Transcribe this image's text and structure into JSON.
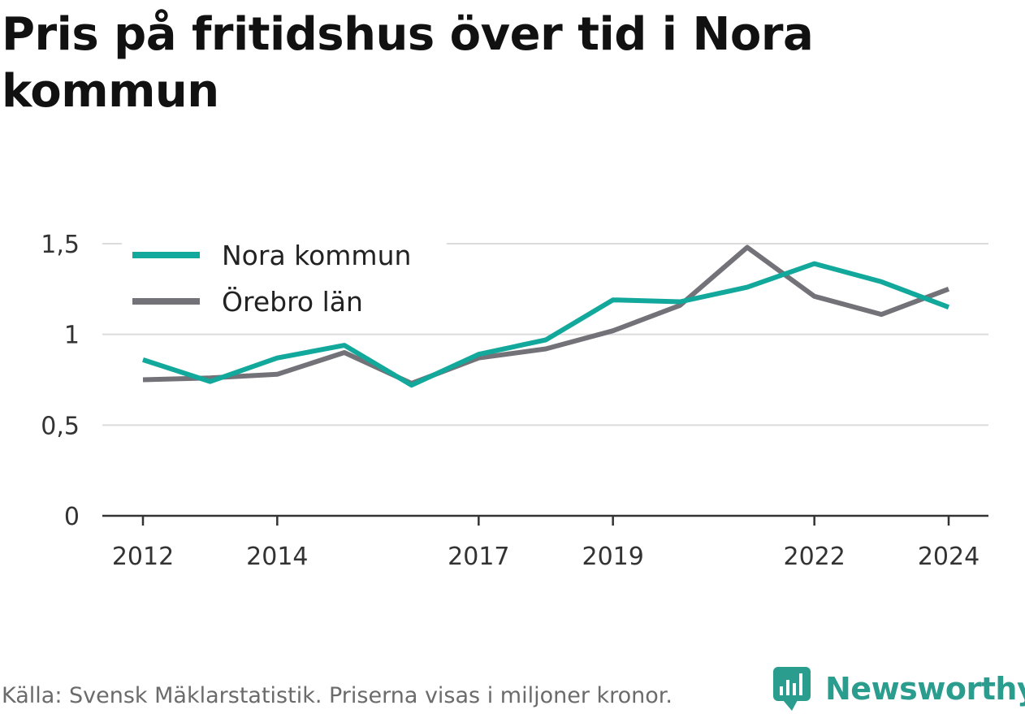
{
  "title": "Pris på fritidshus över tid i Nora kommun",
  "source": "Källa: Svensk Mäklarstatistik. Priserna visas i miljoner kronor.",
  "brand": {
    "name": "Newsworthy",
    "icon": "newsworthy-logo-icon",
    "color": "#2a9d8f"
  },
  "chart_data": {
    "type": "line",
    "x": [
      2012,
      2013,
      2014,
      2015,
      2016,
      2017,
      2018,
      2019,
      2020,
      2021,
      2022,
      2023,
      2024
    ],
    "x_tick_labels": [
      "2012",
      "2014",
      "2017",
      "2019",
      "2022",
      "2024"
    ],
    "y_ticks": [
      0,
      0.5,
      1,
      1.5
    ],
    "y_tick_labels": [
      "0",
      "0,5",
      "1",
      "1,5"
    ],
    "ylim": [
      0,
      1.5
    ],
    "grid": true,
    "legend_position": "top-left",
    "series": [
      {
        "name": "Nora kommun",
        "color": "#12a89b",
        "values": [
          0.86,
          0.74,
          0.87,
          0.94,
          0.72,
          0.89,
          0.97,
          1.19,
          1.18,
          1.26,
          1.39,
          1.29,
          1.15
        ]
      },
      {
        "name": "Örebro län",
        "color": "#737278",
        "values": [
          0.75,
          0.76,
          0.78,
          0.9,
          0.73,
          0.87,
          0.92,
          1.02,
          1.16,
          1.48,
          1.21,
          1.11,
          1.25
        ]
      }
    ]
  }
}
